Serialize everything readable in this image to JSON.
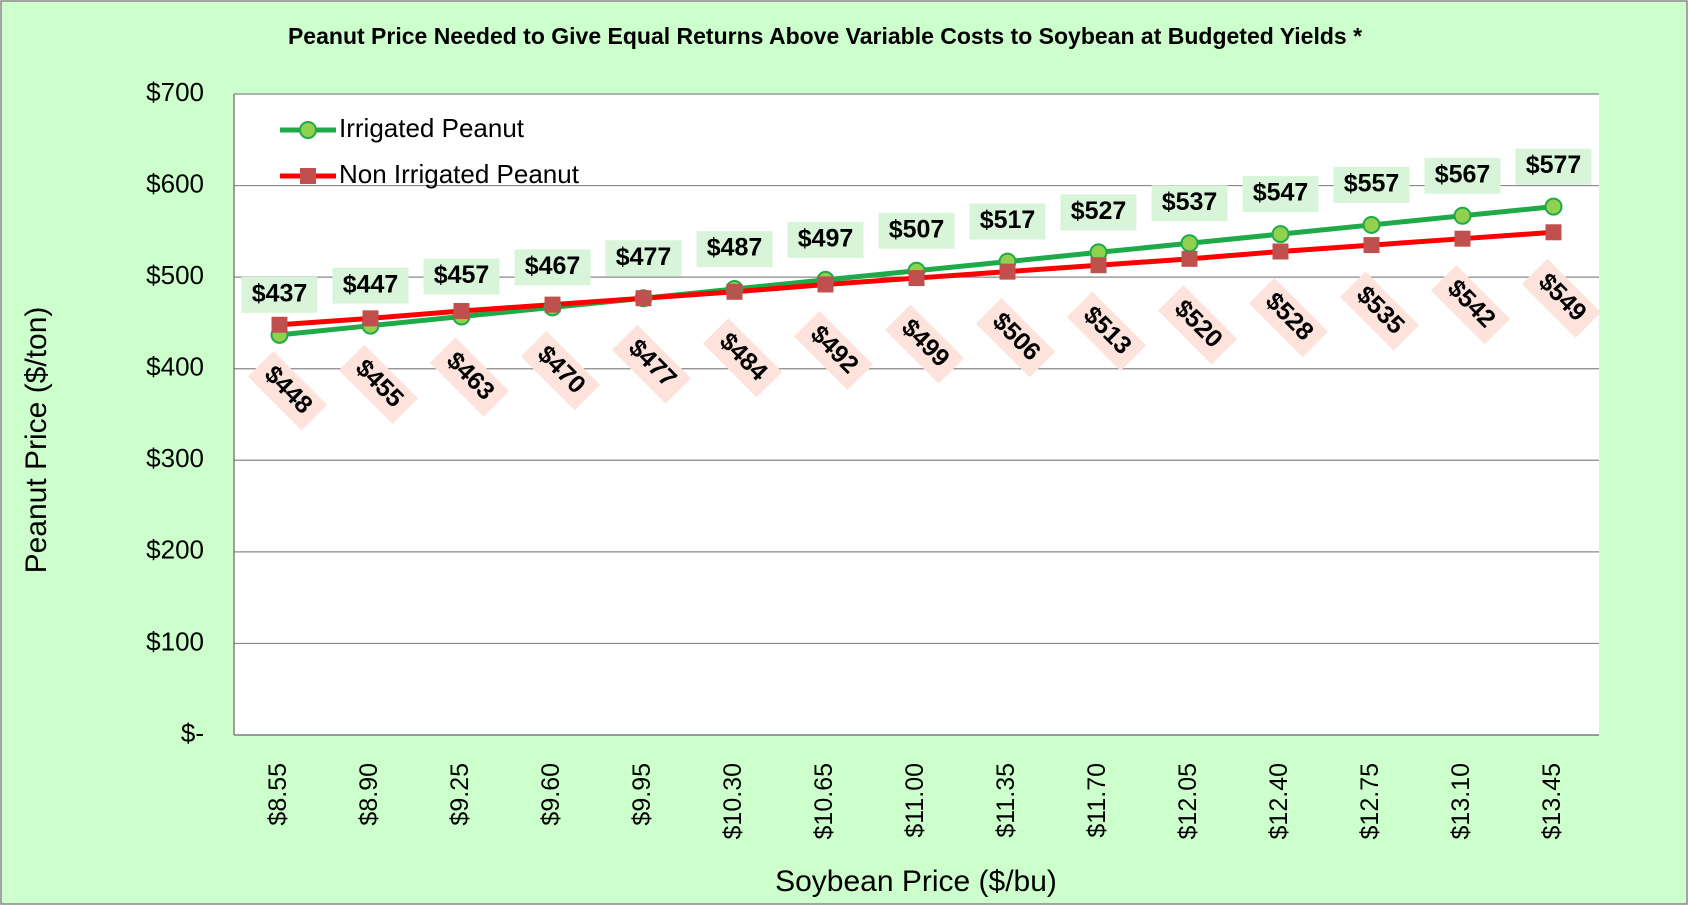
{
  "chart_data": {
    "type": "line",
    "title": "Peanut Price Needed to Give Equal Returns Above Variable Costs to Soybean at Budgeted Yields *",
    "x_label": "Soybean Price ($/bu)",
    "y_label": "Peanut Price ($/ton)",
    "categories": [
      "$8.55",
      "$8.90",
      "$9.25",
      "$9.60",
      "$9.95",
      "$10.30",
      "$10.65",
      "$11.00",
      "$11.35",
      "$11.70",
      "$12.05",
      "$12.40",
      "$12.75",
      "$13.10",
      "$13.45"
    ],
    "series": [
      {
        "name": "Irrigated Peanut",
        "color": "#1faa4a",
        "marker_color": "#92d050",
        "values": [
          437,
          447,
          457,
          467,
          477,
          487,
          497,
          507,
          517,
          527,
          537,
          547,
          557,
          567,
          577
        ],
        "value_labels": [
          "$437",
          "$447",
          "$457",
          "$467",
          "$477",
          "$487",
          "$497",
          "$507",
          "$517",
          "$527",
          "$537",
          "$547",
          "$557",
          "$567",
          "$577"
        ]
      },
      {
        "name": "Non Irrigated Peanut",
        "color": "#ff0000",
        "marker_color": "#c0504d",
        "values": [
          448,
          455,
          463,
          470,
          477,
          484,
          492,
          499,
          506,
          513,
          520,
          528,
          535,
          542,
          549
        ],
        "value_labels": [
          "$448",
          "$455",
          "$463",
          "$470",
          "$477",
          "$484",
          "$492",
          "$499",
          "$506",
          "$513",
          "$520",
          "$528",
          "$535",
          "$542",
          "$549"
        ]
      }
    ],
    "ylim": [
      0,
      700
    ],
    "yticks": [
      {
        "value": 0,
        "label": "$-"
      },
      {
        "value": 100,
        "label": "$100"
      },
      {
        "value": 200,
        "label": "$200"
      },
      {
        "value": 300,
        "label": "$300"
      },
      {
        "value": 400,
        "label": "$400"
      },
      {
        "value": 500,
        "label": "$500"
      },
      {
        "value": 600,
        "label": "$600"
      },
      {
        "value": 700,
        "label": "$700"
      }
    ],
    "grid": true,
    "legend": "top-left"
  }
}
